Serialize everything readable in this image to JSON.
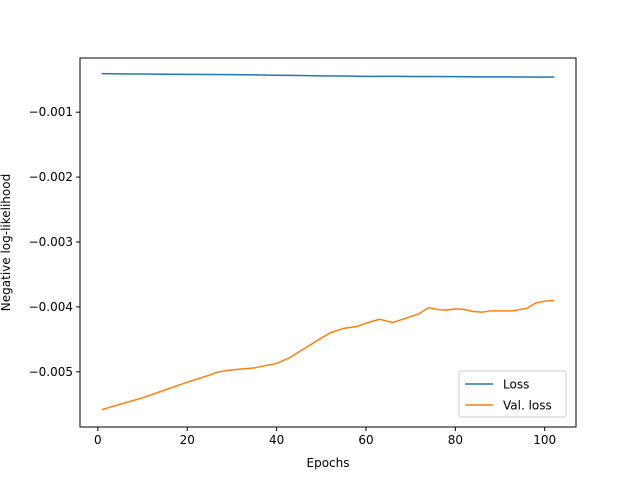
{
  "chart_data": {
    "type": "line",
    "xlabel": "Epochs",
    "ylabel": "Negative log-likelihood",
    "xlim": [
      -4,
      107
    ],
    "ylim": [
      -0.00585,
      -0.000165
    ],
    "xticks": [
      0,
      20,
      40,
      60,
      80,
      100
    ],
    "yticks": [
      -0.001,
      -0.002,
      -0.003,
      -0.004,
      -0.005
    ],
    "xtick_labels": [
      "0",
      "20",
      "40",
      "60",
      "80",
      "100"
    ],
    "ytick_labels": [
      "−0.001",
      "−0.002",
      "−0.003",
      "−0.004",
      "−0.005"
    ],
    "grid": false,
    "legend": "lower-right",
    "series": [
      {
        "name": "Loss",
        "color": "#1f77b4",
        "x": [
          1,
          5,
          10,
          15,
          20,
          25,
          30,
          35,
          40,
          45,
          50,
          55,
          60,
          65,
          70,
          75,
          80,
          85,
          90,
          95,
          100,
          102
        ],
        "y": [
          -0.000405,
          -0.00041,
          -0.000412,
          -0.000415,
          -0.000418,
          -0.00042,
          -0.000422,
          -0.000425,
          -0.00043,
          -0.000435,
          -0.00044,
          -0.000443,
          -0.000448,
          -0.000447,
          -0.00045,
          -0.00045,
          -0.000452,
          -0.000455,
          -0.000455,
          -0.000458,
          -0.00046,
          -0.000458
        ]
      },
      {
        "name": "Val. loss",
        "color": "#ff7f0e",
        "x": [
          1,
          5,
          10,
          15,
          20,
          25,
          27,
          30,
          35,
          40,
          43,
          46,
          50,
          52,
          55,
          58,
          60,
          63,
          66,
          70,
          72,
          74,
          76,
          78,
          80,
          82,
          84,
          86,
          88,
          90,
          93,
          96,
          98,
          100,
          102
        ],
        "y": [
          -0.00558,
          -0.0055,
          -0.0054,
          -0.00528,
          -0.00516,
          -0.00505,
          -0.005,
          -0.00497,
          -0.00494,
          -0.00487,
          -0.00478,
          -0.00465,
          -0.00448,
          -0.0044,
          -0.00433,
          -0.0043,
          -0.00425,
          -0.00419,
          -0.00424,
          -0.00415,
          -0.0041,
          -0.00401,
          -0.00404,
          -0.00405,
          -0.00403,
          -0.00404,
          -0.00407,
          -0.00408,
          -0.00406,
          -0.00406,
          -0.00406,
          -0.00402,
          -0.00394,
          -0.00391,
          -0.0039
        ]
      }
    ]
  }
}
